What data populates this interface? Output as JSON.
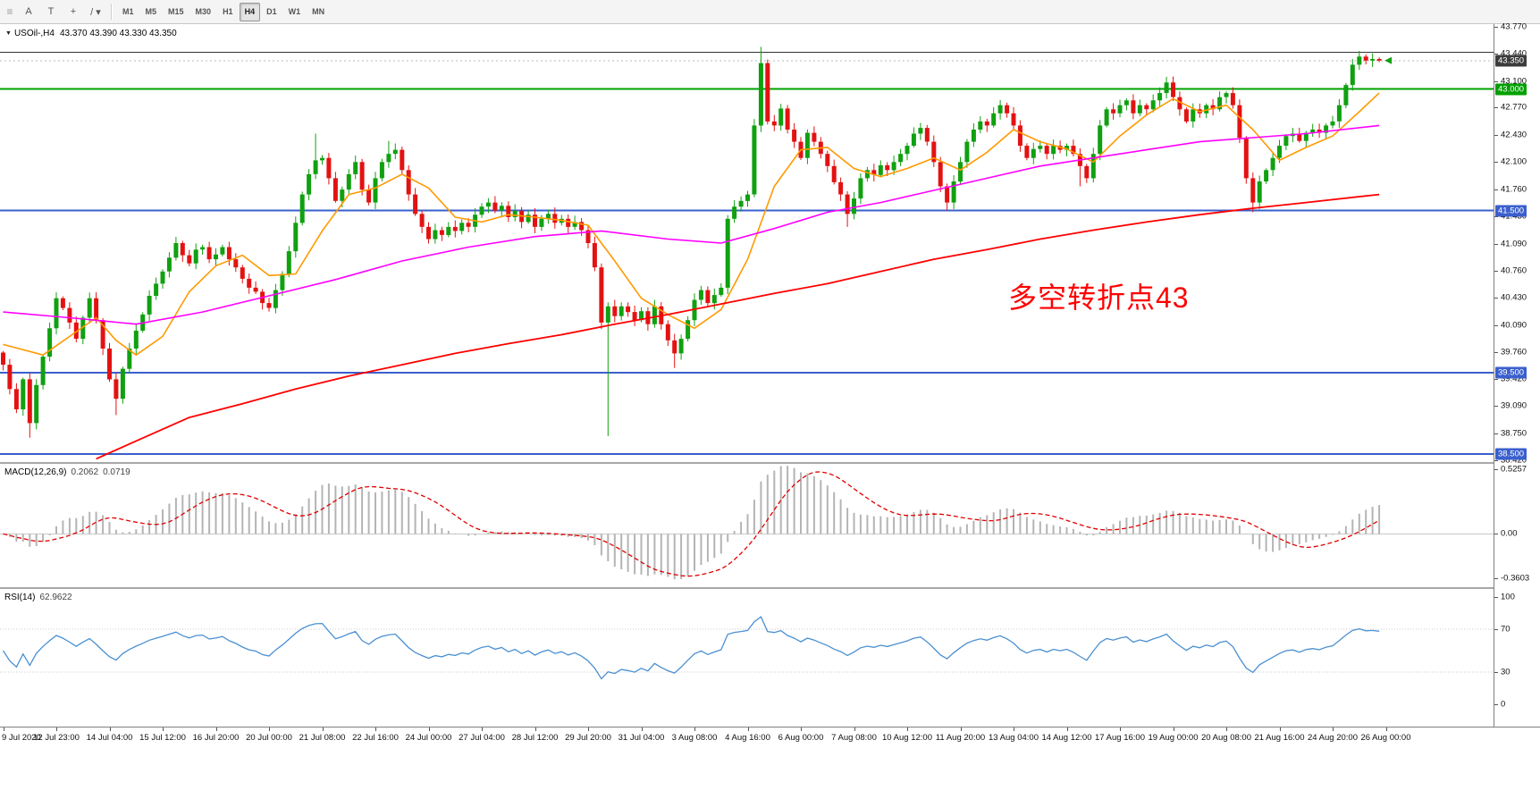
{
  "toolbar": {
    "tools": [
      {
        "name": "drag-handle-icon",
        "glyph": "≡"
      },
      {
        "name": "text-tool",
        "glyph": "A"
      },
      {
        "name": "text-frame-tool",
        "glyph": "T"
      },
      {
        "name": "crosshair-tool",
        "glyph": "+"
      },
      {
        "name": "draw-tools-dropdown",
        "glyph": "/ ▾"
      }
    ],
    "timeframes": [
      "M1",
      "M5",
      "M15",
      "M30",
      "H1",
      "H4",
      "D1",
      "W1",
      "MN"
    ],
    "active_timeframe": "H4"
  },
  "main_chart": {
    "title_marker": "▼",
    "title_symbol": "USOil-,H4",
    "title_ohlc": "43.370 43.390 43.330 43.350",
    "annotation": {
      "text": "多空转折点43",
      "color": "#FF0000"
    }
  },
  "macd_panel": {
    "label": "MACD(12,26,9)",
    "value_main": "0.2062",
    "value_signal": "0.0719"
  },
  "rsi_panel": {
    "label": "RSI(14)",
    "value": "62.9622"
  },
  "chart_data": {
    "type": "candlestick",
    "symbol": "USOil-",
    "period": "H4",
    "colors": {
      "bull": "#10A010",
      "bear": "#E31212",
      "ma_fast": "#FF9900",
      "ma_medium": "#FF00FF",
      "ma_slow": "#FF0000",
      "macd_hist": "#B4B4B4",
      "macd_signal": "#E00000",
      "rsi_line": "#4A90D2",
      "level_blue": "#3A5FCD",
      "level_green": "#00A000",
      "current_badge_bg": "#3C3C3C"
    },
    "price_axis": {
      "min": 38.4,
      "max": 43.8,
      "ticks": [
        43.77,
        43.44,
        43.1,
        42.77,
        42.43,
        42.1,
        41.76,
        41.43,
        41.09,
        40.76,
        40.43,
        40.09,
        39.76,
        39.42,
        39.09,
        38.75,
        38.42
      ]
    },
    "levels": [
      {
        "price": 43.455,
        "color": "#333333",
        "width": 1,
        "badge": null
      },
      {
        "price": 43.0,
        "color": "#00A000",
        "width": 2,
        "badge": "43.000"
      },
      {
        "price": 41.5,
        "color": "#3A5FCD",
        "width": 2,
        "badge": "41.500"
      },
      {
        "price": 39.5,
        "color": "#3A5FCD",
        "width": 2,
        "badge": "39.500"
      },
      {
        "price": 38.5,
        "color": "#3A5FCD",
        "width": 2,
        "badge": "38.500"
      }
    ],
    "current_price": {
      "value": 43.35,
      "badge": "43.350"
    },
    "candles": {
      "first_open": 39.75,
      "closes": [
        39.6,
        39.3,
        39.05,
        39.42,
        38.88,
        39.35,
        39.7,
        40.05,
        40.42,
        40.3,
        40.12,
        39.92,
        40.18,
        40.42,
        40.15,
        39.8,
        39.42,
        39.18,
        39.55,
        39.8,
        40.02,
        40.22,
        40.45,
        40.6,
        40.75,
        40.92,
        41.1,
        40.95,
        40.85,
        41.02,
        41.05,
        40.9,
        40.96,
        41.05,
        40.9,
        40.8,
        40.66,
        40.55,
        40.5,
        40.36,
        40.3,
        40.52,
        40.72,
        41.0,
        41.35,
        41.7,
        41.95,
        42.12,
        42.15,
        41.9,
        41.62,
        41.76,
        41.95,
        42.1,
        41.76,
        41.6,
        41.9,
        42.1,
        42.2,
        42.25,
        42.0,
        41.7,
        41.46,
        41.3,
        41.15,
        41.26,
        41.2,
        41.3,
        41.25,
        41.35,
        41.3,
        41.45,
        41.55,
        41.6,
        41.5,
        41.56,
        41.42,
        41.5,
        41.36,
        41.45,
        41.3,
        41.4,
        41.46,
        41.35,
        41.4,
        41.3,
        41.36,
        41.26,
        41.1,
        40.8,
        40.12,
        40.32,
        40.2,
        40.32,
        40.25,
        40.15,
        40.26,
        40.1,
        40.32,
        40.1,
        39.9,
        39.74,
        39.92,
        40.15,
        40.4,
        40.52,
        40.36,
        40.46,
        40.55,
        41.4,
        41.55,
        41.62,
        41.7,
        42.55,
        43.32,
        42.6,
        42.55,
        42.76,
        42.5,
        42.35,
        42.15,
        42.46,
        42.35,
        42.2,
        42.05,
        41.85,
        41.7,
        41.46,
        41.65,
        41.9,
        42.0,
        41.94,
        42.06,
        42.0,
        42.1,
        42.2,
        42.3,
        42.45,
        42.52,
        42.35,
        42.1,
        41.8,
        41.6,
        41.86,
        42.1,
        42.35,
        42.5,
        42.6,
        42.55,
        42.7,
        42.8,
        42.7,
        42.55,
        42.3,
        42.15,
        42.26,
        42.3,
        42.2,
        42.3,
        42.25,
        42.3,
        42.2,
        42.05,
        41.9,
        42.2,
        42.55,
        42.75,
        42.7,
        42.8,
        42.86,
        42.7,
        42.8,
        42.75,
        42.86,
        42.95,
        43.08,
        42.9,
        42.75,
        42.6,
        42.75,
        42.7,
        42.8,
        42.75,
        42.9,
        42.95,
        42.8,
        42.4,
        41.9,
        41.6,
        41.86,
        42.0,
        42.15,
        42.3,
        42.42,
        42.45,
        42.36,
        42.46,
        42.5,
        42.46,
        42.55,
        42.6,
        42.8,
        43.05,
        43.3,
        43.4,
        43.35,
        43.37,
        43.35
      ],
      "wick_overrides": [
        {
          "i": 4,
          "low": 38.7
        },
        {
          "i": 17,
          "low": 38.98
        },
        {
          "i": 47,
          "high": 42.45
        },
        {
          "i": 58,
          "high": 42.36
        },
        {
          "i": 91,
          "low": 38.72
        },
        {
          "i": 101,
          "low": 39.56
        },
        {
          "i": 114,
          "high": 43.52
        },
        {
          "i": 127,
          "low": 41.3
        },
        {
          "i": 142,
          "low": 41.5
        },
        {
          "i": 162,
          "low": 41.8
        },
        {
          "i": 175,
          "high": 43.15
        },
        {
          "i": 188,
          "low": 41.48
        },
        {
          "i": 204,
          "high": 43.47
        },
        {
          "i": 207,
          "high": 43.39,
          "low": 43.33
        }
      ]
    },
    "moving_averages": [
      {
        "name": "fast-ma-orange",
        "color": "#FF9900",
        "width": 1.6,
        "points": [
          [
            0,
            39.85
          ],
          [
            6,
            39.72
          ],
          [
            10,
            39.95
          ],
          [
            14,
            40.18
          ],
          [
            17,
            39.9
          ],
          [
            20,
            39.72
          ],
          [
            24,
            39.95
          ],
          [
            28,
            40.5
          ],
          [
            32,
            40.82
          ],
          [
            36,
            40.95
          ],
          [
            40,
            40.7
          ],
          [
            44,
            40.72
          ],
          [
            48,
            41.25
          ],
          [
            52,
            41.7
          ],
          [
            56,
            41.78
          ],
          [
            60,
            41.95
          ],
          [
            64,
            41.78
          ],
          [
            68,
            41.42
          ],
          [
            72,
            41.36
          ],
          [
            76,
            41.45
          ],
          [
            80,
            41.42
          ],
          [
            84,
            41.38
          ],
          [
            88,
            41.32
          ],
          [
            92,
            40.88
          ],
          [
            96,
            40.42
          ],
          [
            100,
            40.22
          ],
          [
            104,
            40.05
          ],
          [
            108,
            40.28
          ],
          [
            112,
            40.9
          ],
          [
            116,
            41.8
          ],
          [
            120,
            42.25
          ],
          [
            124,
            42.28
          ],
          [
            128,
            42.02
          ],
          [
            132,
            41.92
          ],
          [
            136,
            42.02
          ],
          [
            140,
            42.15
          ],
          [
            144,
            42.0
          ],
          [
            148,
            42.22
          ],
          [
            152,
            42.5
          ],
          [
            156,
            42.35
          ],
          [
            160,
            42.26
          ],
          [
            164,
            42.1
          ],
          [
            168,
            42.42
          ],
          [
            172,
            42.68
          ],
          [
            176,
            42.88
          ],
          [
            180,
            42.72
          ],
          [
            184,
            42.8
          ],
          [
            188,
            42.5
          ],
          [
            192,
            42.12
          ],
          [
            196,
            42.28
          ],
          [
            200,
            42.42
          ],
          [
            204,
            42.72
          ],
          [
            207,
            42.95
          ]
        ]
      },
      {
        "name": "medium-ma-magenta",
        "color": "#FF00FF",
        "width": 1.6,
        "points": [
          [
            0,
            40.25
          ],
          [
            10,
            40.18
          ],
          [
            20,
            40.1
          ],
          [
            30,
            40.25
          ],
          [
            40,
            40.45
          ],
          [
            50,
            40.65
          ],
          [
            60,
            40.88
          ],
          [
            70,
            41.05
          ],
          [
            80,
            41.18
          ],
          [
            90,
            41.25
          ],
          [
            100,
            41.15
          ],
          [
            108,
            41.1
          ],
          [
            116,
            41.28
          ],
          [
            124,
            41.48
          ],
          [
            132,
            41.6
          ],
          [
            140,
            41.75
          ],
          [
            148,
            41.9
          ],
          [
            156,
            42.05
          ],
          [
            164,
            42.15
          ],
          [
            172,
            42.25
          ],
          [
            180,
            42.35
          ],
          [
            188,
            42.4
          ],
          [
            196,
            42.45
          ],
          [
            207,
            42.55
          ]
        ]
      },
      {
        "name": "slow-ma-red",
        "color": "#FF0000",
        "width": 1.8,
        "points": [
          [
            14,
            38.44
          ],
          [
            20,
            38.66
          ],
          [
            28,
            38.95
          ],
          [
            36,
            39.12
          ],
          [
            44,
            39.3
          ],
          [
            52,
            39.46
          ],
          [
            60,
            39.6
          ],
          [
            68,
            39.74
          ],
          [
            76,
            39.86
          ],
          [
            84,
            39.97
          ],
          [
            92,
            40.1
          ],
          [
            100,
            40.22
          ],
          [
            108,
            40.35
          ],
          [
            116,
            40.48
          ],
          [
            124,
            40.6
          ],
          [
            132,
            40.75
          ],
          [
            140,
            40.9
          ],
          [
            148,
            41.02
          ],
          [
            156,
            41.15
          ],
          [
            164,
            41.26
          ],
          [
            172,
            41.36
          ],
          [
            180,
            41.45
          ],
          [
            188,
            41.53
          ],
          [
            196,
            41.6
          ],
          [
            207,
            41.7
          ]
        ]
      }
    ],
    "macd": {
      "params": "MACD(12,26,9)",
      "value_main": "0.2062",
      "value_signal": "0.0719",
      "range": {
        "min": -0.3603,
        "max": 0.5257
      },
      "axis_ticks": [
        {
          "v": 0.5257,
          "label": "0.5257"
        },
        {
          "v": 0,
          "label": "0.00"
        },
        {
          "v": -0.3603,
          "label": "-0.3603"
        }
      ]
    },
    "rsi": {
      "params": "RSI(14)",
      "value": "62.9622",
      "axis_ticks": [
        100,
        70,
        30,
        0
      ],
      "levels": [
        70,
        30
      ]
    },
    "time_labels": [
      "9 Jul 2020",
      "12 Jul 23:00",
      "14 Jul 04:00",
      "15 Jul 12:00",
      "16 Jul 20:00",
      "20 Jul 00:00",
      "21 Jul 08:00",
      "22 Jul 16:00",
      "24 Jul 00:00",
      "27 Jul 04:00",
      "28 Jul 12:00",
      "29 Jul 20:00",
      "31 Jul 04:00",
      "3 Aug 08:00",
      "4 Aug 16:00",
      "6 Aug 00:00",
      "7 Aug 08:00",
      "10 Aug 12:00",
      "11 Aug 20:00",
      "13 Aug 04:00",
      "14 Aug 12:00",
      "17 Aug 16:00",
      "19 Aug 00:00",
      "20 Aug 08:00",
      "21 Aug 16:00",
      "24 Aug 20:00",
      "26 Aug 00:00"
    ]
  }
}
